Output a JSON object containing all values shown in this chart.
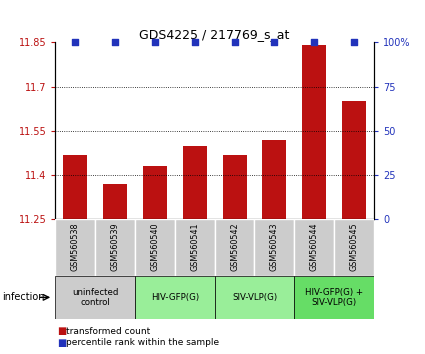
{
  "title": "GDS4225 / 217769_s_at",
  "samples": [
    "GSM560538",
    "GSM560539",
    "GSM560540",
    "GSM560541",
    "GSM560542",
    "GSM560543",
    "GSM560544",
    "GSM560545"
  ],
  "bar_values": [
    11.47,
    11.37,
    11.43,
    11.5,
    11.47,
    11.52,
    11.84,
    11.65
  ],
  "ylim": [
    11.25,
    11.85
  ],
  "yticks_left": [
    11.25,
    11.4,
    11.55,
    11.7,
    11.85
  ],
  "yticks_right": [
    0,
    25,
    50,
    75,
    100
  ],
  "bar_color": "#bb1111",
  "percentile_color": "#2233bb",
  "groups": [
    {
      "label": "uninfected\ncontrol",
      "start": 0,
      "end": 2,
      "color": "#cccccc"
    },
    {
      "label": "HIV-GFP(G)",
      "start": 2,
      "end": 4,
      "color": "#99ee99"
    },
    {
      "label": "SIV-VLP(G)",
      "start": 4,
      "end": 6,
      "color": "#99ee99"
    },
    {
      "label": "HIV-GFP(G) +\nSIV-VLP(G)",
      "start": 6,
      "end": 8,
      "color": "#66dd66"
    }
  ],
  "infection_label": "infection",
  "legend_red_label": "transformed count",
  "legend_blue_label": "percentile rank within the sample",
  "sample_box_color": "#cccccc"
}
